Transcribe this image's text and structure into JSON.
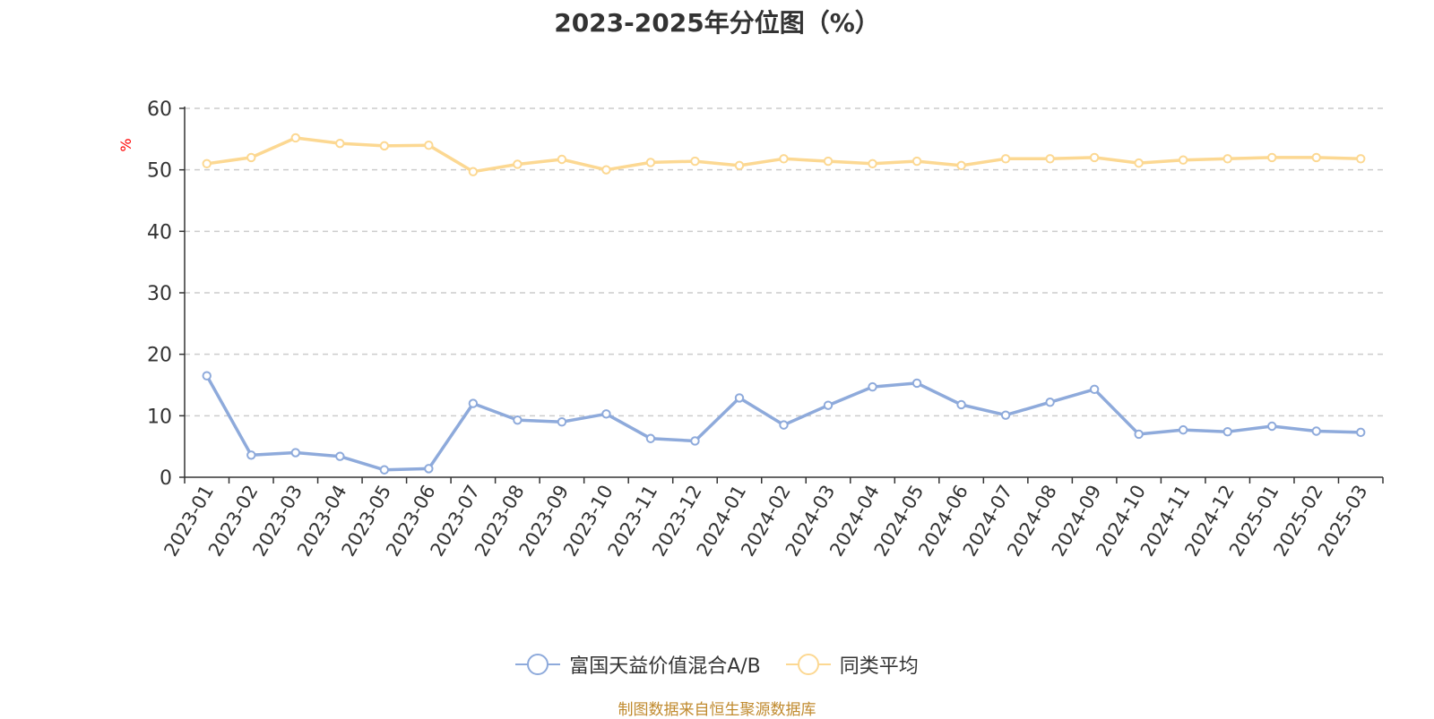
{
  "chart_data": {
    "type": "line",
    "title": "2023-2025年分位图（%）",
    "ylabel": "%",
    "xlabel": "",
    "ylim": [
      0,
      60
    ],
    "yticks": [
      0,
      10,
      20,
      30,
      40,
      50,
      60
    ],
    "grid": true,
    "legend_position": "bottom",
    "categories": [
      "2023-01",
      "2023-02",
      "2023-03",
      "2023-04",
      "2023-05",
      "2023-06",
      "2023-07",
      "2023-08",
      "2023-09",
      "2023-10",
      "2023-11",
      "2023-12",
      "2024-01",
      "2024-02",
      "2024-03",
      "2024-04",
      "2024-05",
      "2024-06",
      "2024-07",
      "2024-08",
      "2024-09",
      "2024-10",
      "2024-11",
      "2024-12",
      "2025-01",
      "2025-02",
      "2025-03"
    ],
    "series": [
      {
        "name": "富国天益价值混合A/B",
        "color": "#8eaadb",
        "values": [
          16.5,
          3.6,
          4.0,
          3.4,
          1.2,
          1.4,
          12.0,
          9.3,
          9.0,
          10.3,
          6.3,
          5.9,
          12.9,
          8.5,
          11.7,
          14.7,
          15.3,
          11.8,
          10.1,
          12.2,
          14.3,
          7.0,
          7.7,
          7.4,
          8.3,
          7.5,
          7.3
        ]
      },
      {
        "name": "同类平均",
        "color": "#fcd892",
        "values": [
          51.0,
          52.0,
          55.2,
          54.3,
          53.9,
          54.0,
          49.7,
          50.9,
          51.7,
          50.0,
          51.2,
          51.4,
          50.7,
          51.8,
          51.4,
          51.0,
          51.4,
          50.7,
          51.8,
          51.8,
          52.0,
          51.1,
          51.6,
          51.8,
          52.0,
          52.0,
          51.8
        ]
      }
    ]
  },
  "footer": "制图数据来自恒生聚源数据库"
}
